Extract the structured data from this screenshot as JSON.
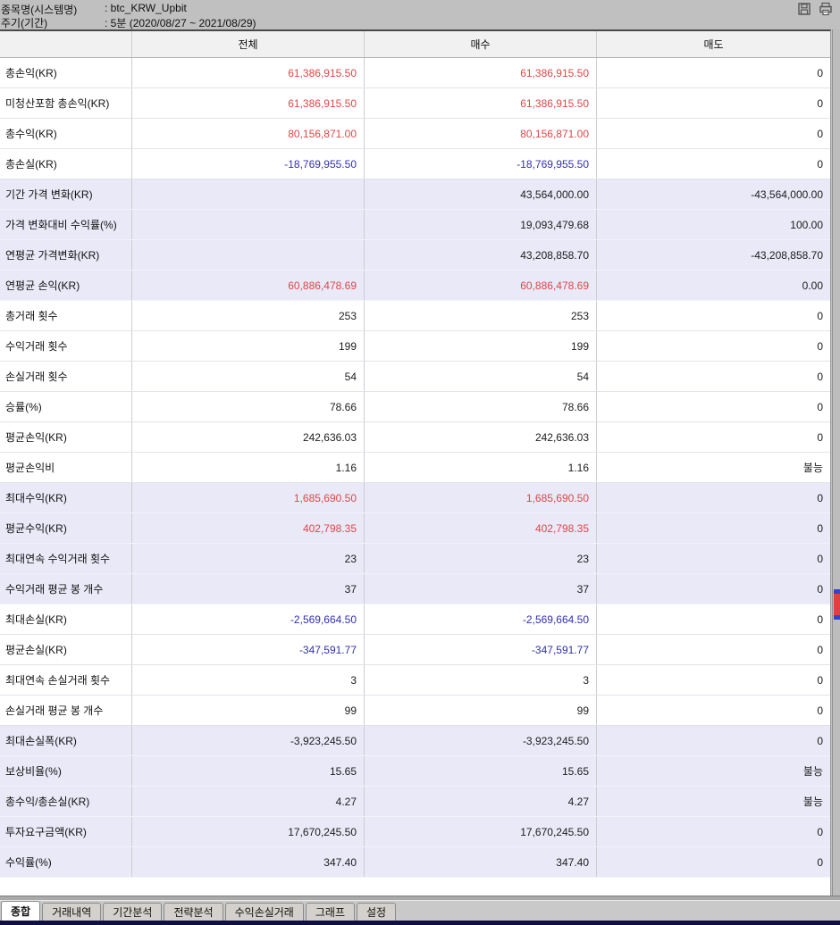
{
  "colors": {
    "red": "#dd4747",
    "blue": "#3030b0",
    "lavender": "#e9e9f8"
  },
  "titlebar": {
    "line1_label": "종목명(시스템명)",
    "line1_value": ": btc_KRW_Upbit",
    "line2_label": "주기(기간)",
    "line2_value": ": 5분 (2020/08/27 ~ 2021/08/29)"
  },
  "table": {
    "columns": [
      "",
      "전체",
      "매수",
      "매도"
    ],
    "rows": [
      {
        "label": "총손익(KR)",
        "values": [
          "61,386,915.50",
          "61,386,915.50",
          "0"
        ],
        "colors": [
          "red",
          "red",
          "black"
        ],
        "band": "white"
      },
      {
        "label": "미청산포함 총손익(KR)",
        "values": [
          "61,386,915.50",
          "61,386,915.50",
          "0"
        ],
        "colors": [
          "red",
          "red",
          "black"
        ],
        "band": "white"
      },
      {
        "label": "총수익(KR)",
        "values": [
          "80,156,871.00",
          "80,156,871.00",
          "0"
        ],
        "colors": [
          "red",
          "red",
          "black"
        ],
        "band": "white"
      },
      {
        "label": "총손실(KR)",
        "values": [
          "-18,769,955.50",
          "-18,769,955.50",
          "0"
        ],
        "colors": [
          "blue",
          "blue",
          "black"
        ],
        "band": "white"
      },
      {
        "label": "기간 가격 변화(KR)",
        "values": [
          "",
          "43,564,000.00",
          "-43,564,000.00"
        ],
        "colors": [
          "black",
          "black",
          "black"
        ],
        "band": "lavender"
      },
      {
        "label": "가격 변화대비 수익률(%)",
        "values": [
          "",
          "19,093,479.68",
          "100.00"
        ],
        "colors": [
          "black",
          "black",
          "black"
        ],
        "band": "lavender"
      },
      {
        "label": "연평균 가격변화(KR)",
        "values": [
          "",
          "43,208,858.70",
          "-43,208,858.70"
        ],
        "colors": [
          "black",
          "black",
          "black"
        ],
        "band": "lavender"
      },
      {
        "label": "연평균 손익(KR)",
        "values": [
          "60,886,478.69",
          "60,886,478.69",
          "0.00"
        ],
        "colors": [
          "red",
          "red",
          "black"
        ],
        "band": "lavender"
      },
      {
        "label": "총거래 횟수",
        "values": [
          "253",
          "253",
          "0"
        ],
        "colors": [
          "black",
          "black",
          "black"
        ],
        "band": "white"
      },
      {
        "label": "수익거래 횟수",
        "values": [
          "199",
          "199",
          "0"
        ],
        "colors": [
          "black",
          "black",
          "black"
        ],
        "band": "white"
      },
      {
        "label": "손실거래 횟수",
        "values": [
          "54",
          "54",
          "0"
        ],
        "colors": [
          "black",
          "black",
          "black"
        ],
        "band": "white"
      },
      {
        "label": "승률(%)",
        "values": [
          "78.66",
          "78.66",
          "0"
        ],
        "colors": [
          "black",
          "black",
          "black"
        ],
        "band": "white"
      },
      {
        "label": "평균손익(KR)",
        "values": [
          "242,636.03",
          "242,636.03",
          "0"
        ],
        "colors": [
          "black",
          "black",
          "black"
        ],
        "band": "white"
      },
      {
        "label": "평균손익비",
        "values": [
          "1.16",
          "1.16",
          "불능"
        ],
        "colors": [
          "black",
          "black",
          "black"
        ],
        "band": "white"
      },
      {
        "label": "최대수익(KR)",
        "values": [
          "1,685,690.50",
          "1,685,690.50",
          "0"
        ],
        "colors": [
          "red",
          "red",
          "black"
        ],
        "band": "lavender"
      },
      {
        "label": "평균수익(KR)",
        "values": [
          "402,798.35",
          "402,798.35",
          "0"
        ],
        "colors": [
          "red",
          "red",
          "black"
        ],
        "band": "lavender"
      },
      {
        "label": "최대연속 수익거래 횟수",
        "values": [
          "23",
          "23",
          "0"
        ],
        "colors": [
          "black",
          "black",
          "black"
        ],
        "band": "lavender"
      },
      {
        "label": "수익거래 평균 봉 개수",
        "values": [
          "37",
          "37",
          "0"
        ],
        "colors": [
          "black",
          "black",
          "black"
        ],
        "band": "lavender"
      },
      {
        "label": "최대손실(KR)",
        "values": [
          "-2,569,664.50",
          "-2,569,664.50",
          "0"
        ],
        "colors": [
          "blue",
          "blue",
          "black"
        ],
        "band": "white"
      },
      {
        "label": "평균손실(KR)",
        "values": [
          "-347,591.77",
          "-347,591.77",
          "0"
        ],
        "colors": [
          "blue",
          "blue",
          "black"
        ],
        "band": "white"
      },
      {
        "label": "최대연속 손실거래 횟수",
        "values": [
          "3",
          "3",
          "0"
        ],
        "colors": [
          "black",
          "black",
          "black"
        ],
        "band": "white"
      },
      {
        "label": "손실거래 평균 봉 개수",
        "values": [
          "99",
          "99",
          "0"
        ],
        "colors": [
          "black",
          "black",
          "black"
        ],
        "band": "white"
      },
      {
        "label": "최대손실폭(KR)",
        "values": [
          "-3,923,245.50",
          "-3,923,245.50",
          "0"
        ],
        "colors": [
          "black",
          "black",
          "black"
        ],
        "band": "lavender"
      },
      {
        "label": "보상비율(%)",
        "values": [
          "15.65",
          "15.65",
          "불능"
        ],
        "colors": [
          "black",
          "black",
          "black"
        ],
        "band": "lavender"
      },
      {
        "label": "총수익/총손실(KR)",
        "values": [
          "4.27",
          "4.27",
          "불능"
        ],
        "colors": [
          "black",
          "black",
          "black"
        ],
        "band": "lavender"
      },
      {
        "label": "투자요구금액(KR)",
        "values": [
          "17,670,245.50",
          "17,670,245.50",
          "0"
        ],
        "colors": [
          "black",
          "black",
          "black"
        ],
        "band": "lavender"
      },
      {
        "label": "수익률(%)",
        "values": [
          "347.40",
          "347.40",
          "0"
        ],
        "colors": [
          "black",
          "black",
          "black"
        ],
        "band": "lavender"
      }
    ]
  },
  "tabs": [
    {
      "label": "종합",
      "active": true
    },
    {
      "label": "거래내역",
      "active": false
    },
    {
      "label": "기간분석",
      "active": false
    },
    {
      "label": "전략분석",
      "active": false
    },
    {
      "label": "수익손실거래",
      "active": false
    },
    {
      "label": "그래프",
      "active": false
    },
    {
      "label": "설정",
      "active": false
    }
  ]
}
